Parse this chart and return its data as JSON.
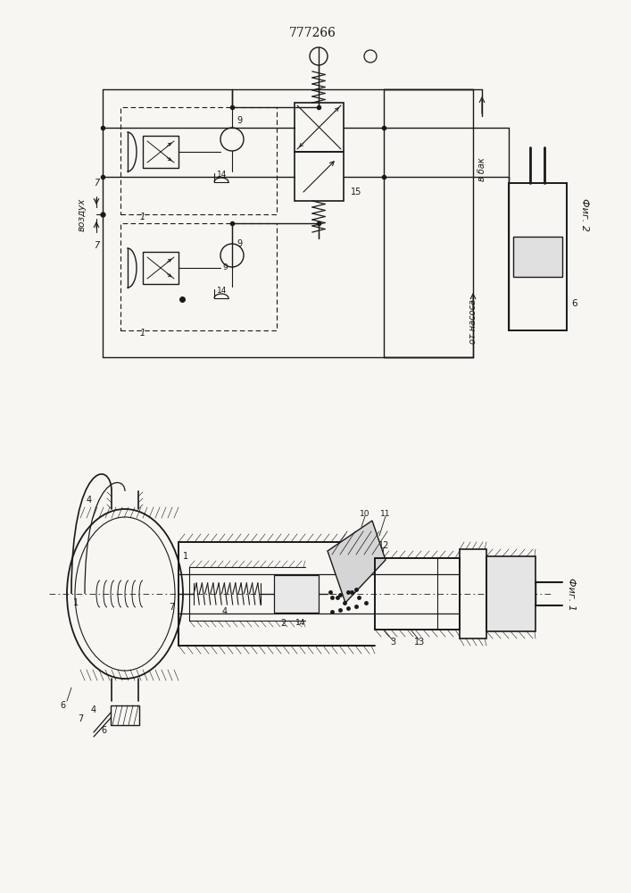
{
  "title": "777266",
  "bg_color": "#f8f6f2",
  "line_color": "#1a1a1a",
  "fig1_label": "Фиг. 1",
  "fig2_label": "Фиг. 2",
  "vozduh_label": "воздух",
  "vbak_label": "в бак",
  "otnasos_label": "от насоса"
}
